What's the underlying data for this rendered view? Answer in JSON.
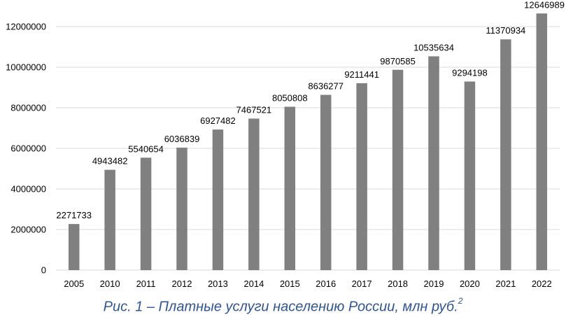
{
  "colors": {
    "bar": "#808080",
    "grid": "#d9d9d9",
    "text": "#000000",
    "caption": "#2e5597"
  },
  "caption": {
    "text": "Рис. 1 – Платные услуги населению России, млн руб.",
    "footnote": "2"
  },
  "chart_data": {
    "type": "bar",
    "categories": [
      "2005",
      "2010",
      "2011",
      "2012",
      "2013",
      "2014",
      "2015",
      "2016",
      "2017",
      "2018",
      "2019",
      "2020",
      "2021",
      "2022"
    ],
    "values": [
      2271733,
      4943482,
      5540654,
      6036839,
      6927482,
      7467521,
      8050808,
      8636277,
      9211441,
      9870585,
      10535634,
      9294198,
      11370934,
      12646989
    ],
    "ylim": [
      0,
      12000000
    ],
    "yticks": [
      0,
      2000000,
      4000000,
      6000000,
      8000000,
      10000000,
      12000000
    ],
    "grid": true,
    "data_labels": true,
    "title": "",
    "xlabel": "",
    "ylabel": ""
  }
}
